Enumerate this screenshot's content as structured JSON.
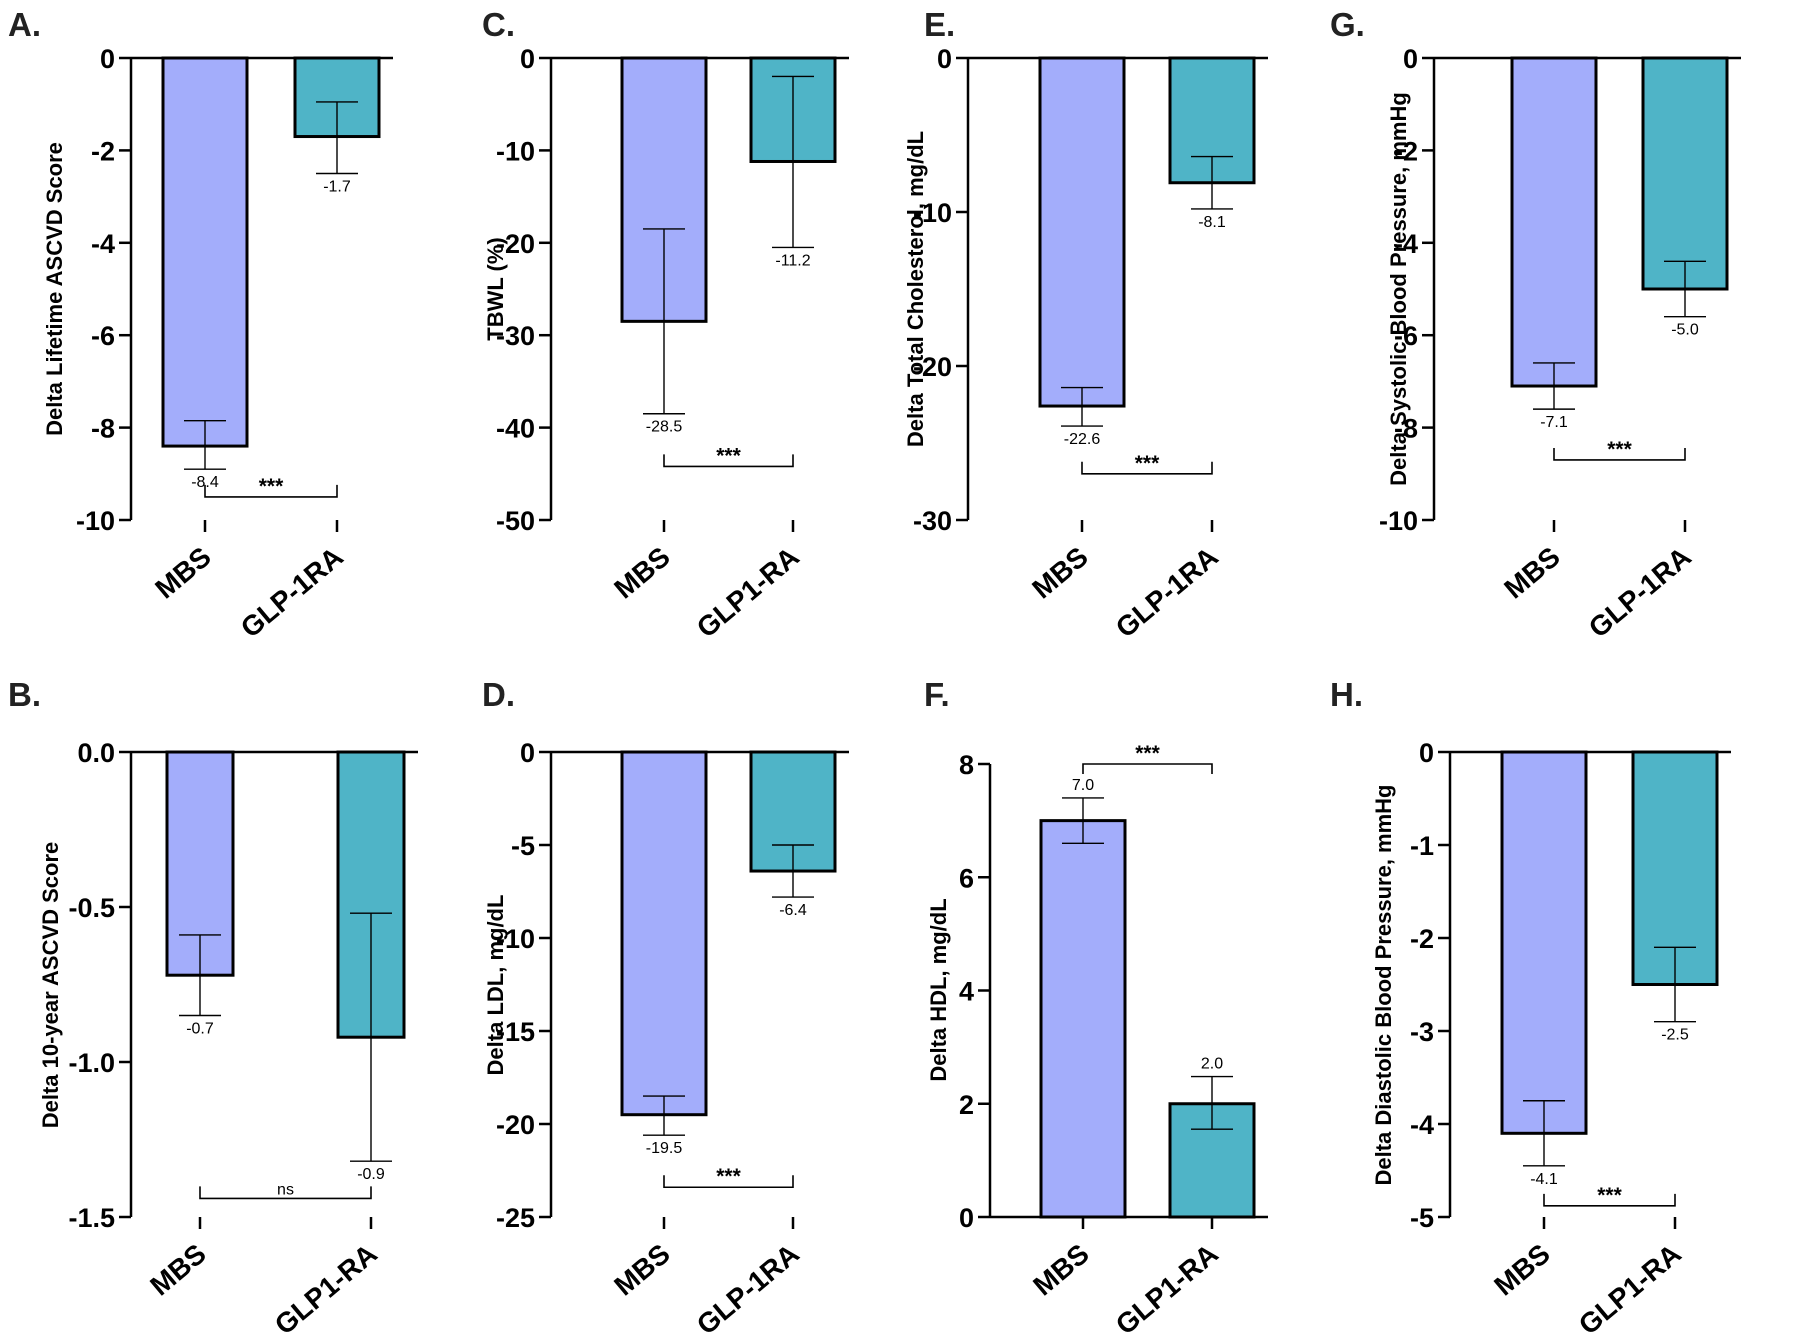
{
  "colors": {
    "MBS": "#a3adfb",
    "GLP1RA": "#4fb4c7",
    "outline": "#000000"
  },
  "chart_data": [
    {
      "type": "bar",
      "panel": "A.",
      "ylabel": "Delta Lifetime ASCVD Score",
      "categories": [
        "MBS",
        "GLP-1RA"
      ],
      "values": [
        -8.4,
        -1.7
      ],
      "value_labels": [
        "-8.4",
        "-1.7"
      ],
      "error_low": [
        -8.9,
        -2.5
      ],
      "error_high": [
        -7.85,
        -0.95
      ],
      "ylim": [
        -10,
        0
      ],
      "yticks": [
        0,
        -2,
        -4,
        -6,
        -8,
        -10
      ],
      "ytick_labels": [
        "0",
        "-2",
        "-4",
        "-6",
        "-8",
        "-10"
      ],
      "significance": {
        "label": "***",
        "y": -9.5
      }
    },
    {
      "type": "bar",
      "panel": "B.",
      "ylabel": "Delta 10-year ASCVD Score",
      "categories": [
        "MBS",
        "GLP1-RA"
      ],
      "values": [
        -0.72,
        -0.92
      ],
      "value_labels": [
        "-0.7",
        "-0.9"
      ],
      "error_low": [
        -0.85,
        -1.32
      ],
      "error_high": [
        -0.59,
        -0.52
      ],
      "ylim": [
        -1.5,
        0
      ],
      "yticks": [
        0,
        -0.5,
        -1.0,
        -1.5
      ],
      "ytick_labels": [
        "0.0",
        "-0.5",
        "-1.0",
        "-1.5"
      ],
      "significance": {
        "label": "ns",
        "y": -1.44
      }
    },
    {
      "type": "bar",
      "panel": "C.",
      "ylabel": "TBWL (%)",
      "categories": [
        "MBS",
        "GLP1-RA"
      ],
      "values": [
        -28.5,
        -11.2
      ],
      "value_labels": [
        "-28.5",
        "-11.2"
      ],
      "error_low": [
        -38.5,
        -20.5
      ],
      "error_high": [
        -18.5,
        -2.0
      ],
      "ylim": [
        -50,
        0
      ],
      "yticks": [
        0,
        -10,
        -20,
        -30,
        -40,
        -50
      ],
      "ytick_labels": [
        "0",
        "-10",
        "-20",
        "-30",
        "-40",
        "-50"
      ],
      "significance": {
        "label": "***",
        "y": -44.2
      }
    },
    {
      "type": "bar",
      "panel": "D.",
      "ylabel": "Delta LDL, mg/dL",
      "categories": [
        "MBS",
        "GLP-1RA"
      ],
      "values": [
        -19.5,
        -6.4
      ],
      "value_labels": [
        "-19.5",
        "-6.4"
      ],
      "error_low": [
        -20.6,
        -7.8
      ],
      "error_high": [
        -18.5,
        -5.0
      ],
      "ylim": [
        -25,
        0
      ],
      "yticks": [
        0,
        -5,
        -10,
        -15,
        -20,
        -25
      ],
      "ytick_labels": [
        "0",
        "-5",
        "-10",
        "-15",
        "-20",
        "-25"
      ],
      "significance": {
        "label": "***",
        "y": -23.4
      }
    },
    {
      "type": "bar",
      "panel": "E.",
      "ylabel": "Delta Total Cholesterol, mg/dL",
      "categories": [
        "MBS",
        "GLP-1RA"
      ],
      "values": [
        -22.6,
        -8.1
      ],
      "value_labels": [
        "-22.6",
        "-8.1"
      ],
      "error_low": [
        -23.9,
        -9.8
      ],
      "error_high": [
        -21.4,
        -6.4
      ],
      "ylim": [
        -30,
        0
      ],
      "yticks": [
        0,
        -10,
        -20,
        -30
      ],
      "ytick_labels": [
        "0",
        "-10",
        "-20",
        "-30"
      ],
      "significance": {
        "label": "***",
        "y": -27.0
      }
    },
    {
      "type": "bar",
      "panel": "F.",
      "ylabel": "Delta HDL, mg/dL",
      "categories": [
        "MBS",
        "GLP1-RA"
      ],
      "values": [
        7.0,
        2.0
      ],
      "value_labels": [
        "7.0",
        "2.0"
      ],
      "error_low": [
        6.6,
        1.55
      ],
      "error_high": [
        7.4,
        2.48
      ],
      "ylim": [
        0,
        8
      ],
      "yticks": [
        0,
        2,
        4,
        6,
        8
      ],
      "ytick_labels": [
        "0",
        "2",
        "4",
        "6",
        "8"
      ],
      "significance": {
        "label": "***",
        "y": 8.0
      }
    },
    {
      "type": "bar",
      "panel": "G.",
      "ylabel": "Delta Systolic Blood Pressure, mmHg",
      "categories": [
        "MBS",
        "GLP-1RA"
      ],
      "values": [
        -7.1,
        -5.0
      ],
      "value_labels": [
        "-7.1",
        "-5.0"
      ],
      "error_low": [
        -7.6,
        -5.6
      ],
      "error_high": [
        -6.6,
        -4.4
      ],
      "ylim": [
        -10,
        0
      ],
      "yticks": [
        0,
        -2,
        -4,
        -6,
        -8,
        -10
      ],
      "ytick_labels": [
        "0",
        "-2",
        "-4",
        "-6",
        "-8",
        "-10"
      ],
      "significance": {
        "label": "***",
        "y": -8.7
      }
    },
    {
      "type": "bar",
      "panel": "H.",
      "ylabel": "Delta Diastolic Blood Pressure, mmHg",
      "categories": [
        "MBS",
        "GLP1-RA"
      ],
      "values": [
        -4.1,
        -2.5
      ],
      "value_labels": [
        "-4.1",
        "-2.5"
      ],
      "error_low": [
        -4.45,
        -2.9
      ],
      "error_high": [
        -3.75,
        -2.1
      ],
      "ylim": [
        -5,
        0
      ],
      "yticks": [
        0,
        -1,
        -2,
        -3,
        -4,
        -5
      ],
      "ytick_labels": [
        "0",
        "-1",
        "-2",
        "-3",
        "-4",
        "-5"
      ],
      "significance": {
        "label": "***",
        "y": -4.88
      }
    }
  ]
}
